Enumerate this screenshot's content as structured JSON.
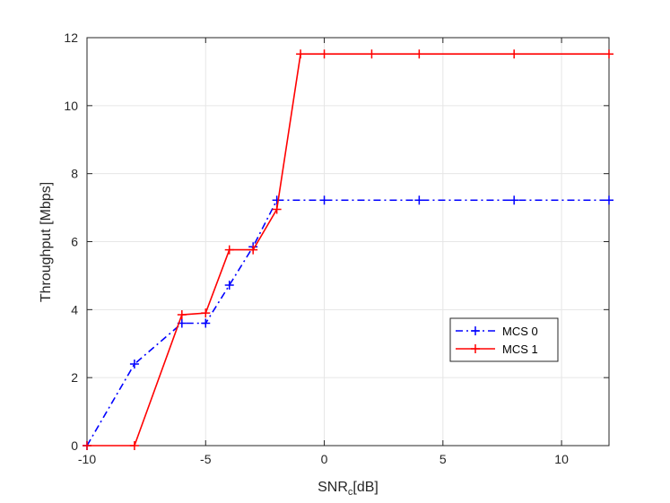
{
  "chart_data": {
    "type": "line",
    "title": "",
    "xlabel_main": "SNR",
    "xlabel_sub": "c",
    "xlabel_unit": "[dB]",
    "ylabel": "Throughput [Mbps]",
    "xlim": [
      -10,
      12
    ],
    "ylim": [
      0,
      12
    ],
    "xticks": [
      -10,
      -5,
      0,
      5,
      10
    ],
    "yticks": [
      0,
      2,
      4,
      6,
      8,
      10,
      12
    ],
    "xtick_labels": [
      "-10",
      "-5",
      "0",
      "5",
      "10"
    ],
    "ytick_labels": [
      "0",
      "2",
      "4",
      "6",
      "8",
      "10",
      "12"
    ],
    "grid": true,
    "legend_position": "right",
    "series": [
      {
        "name": "MCS 0",
        "color": "#0000ff",
        "style": "dash-dot",
        "marker": "plus",
        "x": [
          -10,
          -8,
          -6,
          -5,
          -4,
          -3,
          -2,
          0,
          4,
          8,
          12
        ],
        "y": [
          0,
          2.4,
          3.6,
          3.6,
          4.72,
          5.85,
          7.22,
          7.22,
          7.22,
          7.22,
          7.22
        ]
      },
      {
        "name": "MCS 1",
        "color": "#ff0000",
        "style": "solid",
        "marker": "plus",
        "x": [
          -10,
          -8,
          -6,
          -5,
          -4,
          -3,
          -2,
          -1,
          0,
          2,
          4,
          8,
          12
        ],
        "y": [
          0,
          0,
          3.85,
          3.9,
          5.76,
          5.76,
          6.95,
          11.52,
          11.52,
          11.52,
          11.52,
          11.52,
          11.52
        ]
      }
    ]
  }
}
